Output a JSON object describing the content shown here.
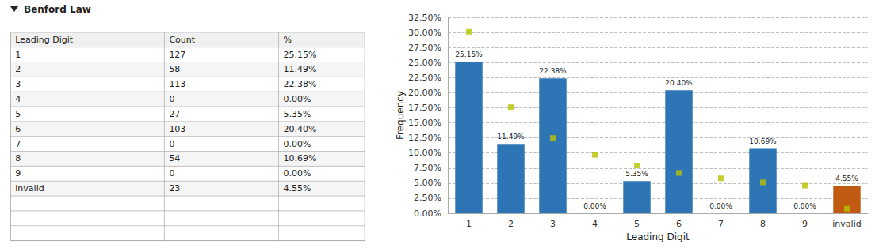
{
  "chart_data": [
    {
      "type": "table",
      "title": "Benford Law",
      "xlabel": "Leading Digit",
      "categories": [
        "1",
        "2",
        "3",
        "4",
        "5",
        "6",
        "7",
        "8",
        "9",
        "invalid"
      ],
      "series": [
        {
          "name": "Count",
          "values": [
            127,
            58,
            113,
            0,
            27,
            103,
            0,
            54,
            0,
            23
          ]
        },
        {
          "name": "%",
          "values": [
            25.15,
            11.49,
            22.38,
            0.0,
            5.35,
            20.4,
            0.0,
            10.69,
            0.0,
            4.55
          ],
          "value_labels": [
            "25.15%",
            "11.49%",
            "22.38%",
            "0.00%",
            "5.35%",
            "20.40%",
            "0.00%",
            "10.69%",
            "0.00%",
            "4.55%"
          ]
        }
      ]
    },
    {
      "type": "bar",
      "xlabel": "Leading Digit",
      "ylabel": "Frequency",
      "categories": [
        "1",
        "2",
        "3",
        "4",
        "5",
        "6",
        "7",
        "8",
        "9",
        "invalid"
      ],
      "series": [
        {
          "type": "bar",
          "colors": [
            "#2E75B6",
            "#2E75B6",
            "#2E75B6",
            "#2E75B6",
            "#2E75B6",
            "#2E75B6",
            "#2E75B6",
            "#2E75B6",
            "#2E75B6",
            "#C05A11"
          ],
          "values": [
            25.15,
            11.49,
            22.38,
            0.0,
            5.35,
            20.4,
            0.0,
            10.69,
            0.0,
            4.55
          ],
          "data_labels": true,
          "value_labels": [
            "25.15%",
            "11.49%",
            "22.38%",
            "0.00%",
            "5.35%",
            "20.40%",
            "0.00%",
            "10.69%",
            "0.00%",
            "4.55%"
          ]
        },
        {
          "type": "scatter",
          "color": "#B5C300",
          "marker": "square",
          "values": [
            30.1,
            17.61,
            12.49,
            9.69,
            7.92,
            6.69,
            5.8,
            5.12,
            4.58,
            0.76
          ]
        }
      ],
      "ylim": [
        0,
        32.5
      ],
      "yticks": [
        {
          "value": 0,
          "label": "0.00%"
        },
        {
          "value": 2.5,
          "label": "2.50%"
        },
        {
          "value": 5,
          "label": "5.00%"
        },
        {
          "value": 7.5,
          "label": "7.50%"
        },
        {
          "value": 10,
          "label": "10.00%"
        },
        {
          "value": 12.5,
          "label": "12.50%"
        },
        {
          "value": 15,
          "label": "15.00%"
        },
        {
          "value": 17.5,
          "label": "17.50%"
        },
        {
          "value": 20,
          "label": "20.00%"
        },
        {
          "value": 22.5,
          "label": "22.50%"
        },
        {
          "value": 25,
          "label": "25.00%"
        },
        {
          "value": 27.5,
          "label": "27.50%"
        },
        {
          "value": 30,
          "label": "30.00%"
        },
        {
          "value": 32.5,
          "label": "32.50%"
        }
      ],
      "grid": true
    }
  ]
}
